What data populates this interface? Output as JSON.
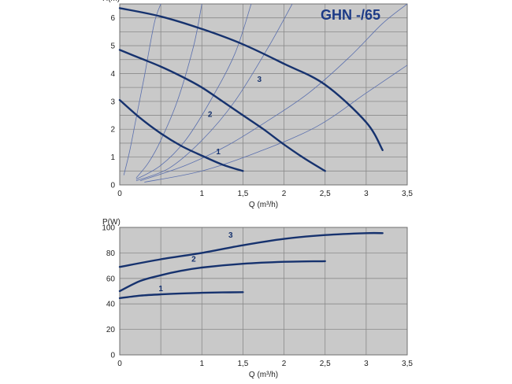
{
  "colors": {
    "plot_bg": "#c9c9c9",
    "grid": "#8a8a8a",
    "curve": "#16326e",
    "system_curve": "#5a6fae",
    "title": "#1c3a86"
  },
  "chart_data": [
    {
      "type": "line",
      "title": "GHN -/65",
      "ylabel": "H(m)",
      "xlabel": "Q (m³/h)",
      "xlim": [
        0,
        3.5
      ],
      "ylim": [
        0,
        6.5
      ],
      "x_ticks": [
        {
          "value": 0,
          "label": "0"
        },
        {
          "value": 0.5,
          "label": ""
        },
        {
          "value": 1,
          "label": "1"
        },
        {
          "value": 1.5,
          "label": "1,5"
        },
        {
          "value": 2,
          "label": "2"
        },
        {
          "value": 2.5,
          "label": "2,5"
        },
        {
          "value": 3,
          "label": "3"
        },
        {
          "value": 3.5,
          "label": "3,5"
        }
      ],
      "y_ticks": [
        {
          "value": 0,
          "label": "0"
        },
        {
          "value": 0.5,
          "label": ""
        },
        {
          "value": 1,
          "label": "1"
        },
        {
          "value": 1.5,
          "label": ""
        },
        {
          "value": 2,
          "label": "2"
        },
        {
          "value": 2.5,
          "label": ""
        },
        {
          "value": 3,
          "label": "3"
        },
        {
          "value": 3.5,
          "label": ""
        },
        {
          "value": 4,
          "label": "4"
        },
        {
          "value": 4.5,
          "label": ""
        },
        {
          "value": 5,
          "label": "5"
        },
        {
          "value": 5.5,
          "label": ""
        },
        {
          "value": 6,
          "label": "6"
        },
        {
          "value": 6.5,
          "label": ""
        }
      ],
      "grid": true,
      "series": [
        {
          "name": "1",
          "label_at": [
            1.2,
            1.1
          ],
          "x": [
            0,
            0.25,
            0.5,
            0.75,
            1.0,
            1.25,
            1.5
          ],
          "y": [
            3.05,
            2.4,
            1.85,
            1.4,
            1.05,
            0.73,
            0.5
          ]
        },
        {
          "name": "2",
          "label_at": [
            1.1,
            2.45
          ],
          "x": [
            0,
            0.25,
            0.5,
            0.75,
            1.0,
            1.25,
            1.5,
            1.75,
            2.0,
            2.25,
            2.5
          ],
          "y": [
            4.85,
            4.55,
            4.25,
            3.9,
            3.5,
            3.0,
            2.5,
            2.0,
            1.45,
            0.95,
            0.5
          ]
        },
        {
          "name": "3",
          "label_at": [
            1.7,
            3.7
          ],
          "x": [
            0,
            0.5,
            1.0,
            1.5,
            2.0,
            2.5,
            3.0,
            3.2
          ],
          "y": [
            6.35,
            6.05,
            5.6,
            5.05,
            4.35,
            3.6,
            2.25,
            1.25
          ]
        }
      ],
      "system_curves": [
        {
          "x": [
            0.05,
            0.12,
            0.2,
            0.3,
            0.42,
            0.5
          ],
          "y": [
            0.35,
            1.2,
            2.4,
            3.9,
            5.8,
            6.5
          ]
        },
        {
          "x": [
            0.2,
            0.35,
            0.5,
            0.7,
            0.9,
            1.0
          ],
          "y": [
            0.25,
            0.8,
            1.6,
            3.0,
            5.0,
            6.5
          ]
        },
        {
          "x": [
            0.2,
            0.5,
            0.8,
            1.1,
            1.4,
            1.6
          ],
          "y": [
            0.2,
            0.7,
            1.6,
            3.0,
            4.7,
            6.5
          ]
        },
        {
          "x": [
            0.2,
            0.6,
            1.0,
            1.4,
            1.8,
            2.1
          ],
          "y": [
            0.15,
            0.6,
            1.6,
            3.0,
            4.9,
            6.5
          ]
        },
        {
          "x": [
            0.25,
            0.8,
            1.3,
            1.8,
            2.3,
            2.8,
            3.2,
            3.5
          ],
          "y": [
            0.15,
            0.7,
            1.4,
            2.3,
            3.3,
            4.6,
            5.8,
            6.5
          ]
        },
        {
          "x": [
            0.3,
            1.0,
            1.7,
            2.4,
            3.0,
            3.5
          ],
          "y": [
            0.1,
            0.5,
            1.2,
            2.1,
            3.3,
            4.3
          ]
        }
      ]
    },
    {
      "type": "line",
      "title": "",
      "ylabel": "P(W)",
      "xlabel": "Q (m³/h)",
      "xlim": [
        0,
        3.5
      ],
      "ylim": [
        0,
        100
      ],
      "x_ticks": [
        {
          "value": 0,
          "label": "0"
        },
        {
          "value": 0.5,
          "label": ""
        },
        {
          "value": 1,
          "label": "1"
        },
        {
          "value": 1.5,
          "label": "1,5"
        },
        {
          "value": 2,
          "label": "2"
        },
        {
          "value": 2.5,
          "label": "2,5"
        },
        {
          "value": 3,
          "label": "3"
        },
        {
          "value": 3.5,
          "label": "3,5"
        }
      ],
      "y_ticks": [
        {
          "value": 0,
          "label": "0"
        },
        {
          "value": 20,
          "label": "20"
        },
        {
          "value": 40,
          "label": "40"
        },
        {
          "value": 60,
          "label": "60"
        },
        {
          "value": 80,
          "label": "80"
        },
        {
          "value": 100,
          "label": "100"
        }
      ],
      "grid": true,
      "series": [
        {
          "name": "1",
          "label_at": [
            0.5,
            50
          ],
          "x": [
            0,
            0.25,
            0.5,
            0.75,
            1.0,
            1.25,
            1.5
          ],
          "y": [
            44.5,
            46.5,
            47.5,
            48.2,
            48.7,
            49.0,
            49.2
          ]
        },
        {
          "name": "2",
          "label_at": [
            0.9,
            73
          ],
          "x": [
            0,
            0.25,
            0.5,
            0.75,
            1.0,
            1.5,
            2.0,
            2.5
          ],
          "y": [
            50,
            58,
            62.5,
            66,
            68.5,
            71.5,
            73,
            73.5
          ]
        },
        {
          "name": "3",
          "label_at": [
            1.35,
            92
          ],
          "x": [
            0,
            0.5,
            1.0,
            1.5,
            2.0,
            2.5,
            3.0,
            3.2
          ],
          "y": [
            69,
            75,
            80,
            86,
            91,
            94,
            95.5,
            95.5
          ]
        }
      ]
    }
  ]
}
